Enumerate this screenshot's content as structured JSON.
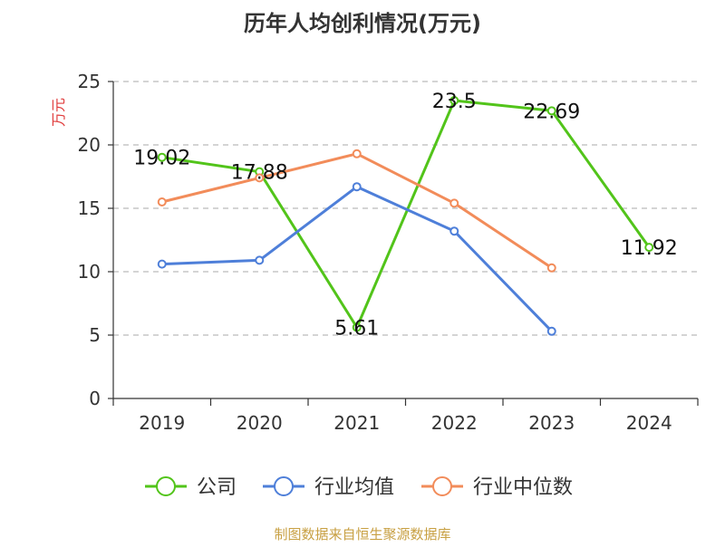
{
  "chart_data": {
    "type": "line",
    "title": "历年人均创利情况(万元)",
    "ylabel": "万元",
    "xlabel": "",
    "categories": [
      "2019",
      "2020",
      "2021",
      "2022",
      "2023",
      "2024"
    ],
    "ylim": [
      0,
      25
    ],
    "yticks": [
      0,
      5,
      10,
      15,
      20,
      25
    ],
    "grid": true,
    "legend_position": "bottom",
    "series": [
      {
        "name": "公司",
        "color": "#52c41a",
        "values": [
          19.02,
          17.88,
          5.61,
          23.5,
          22.69,
          11.92
        ],
        "data_labels": [
          "19.02",
          "17.88",
          "5.61",
          "23.5",
          "22.69",
          "11.92"
        ]
      },
      {
        "name": "行业均值",
        "color": "#4e7fd9",
        "values": [
          10.6,
          10.9,
          16.7,
          13.2,
          5.3,
          null
        ]
      },
      {
        "name": "行业中位数",
        "color": "#f28c5a",
        "values": [
          15.5,
          17.4,
          19.3,
          15.4,
          10.3,
          null
        ]
      }
    ],
    "source": "制图数据来自恒生聚源数据库"
  }
}
